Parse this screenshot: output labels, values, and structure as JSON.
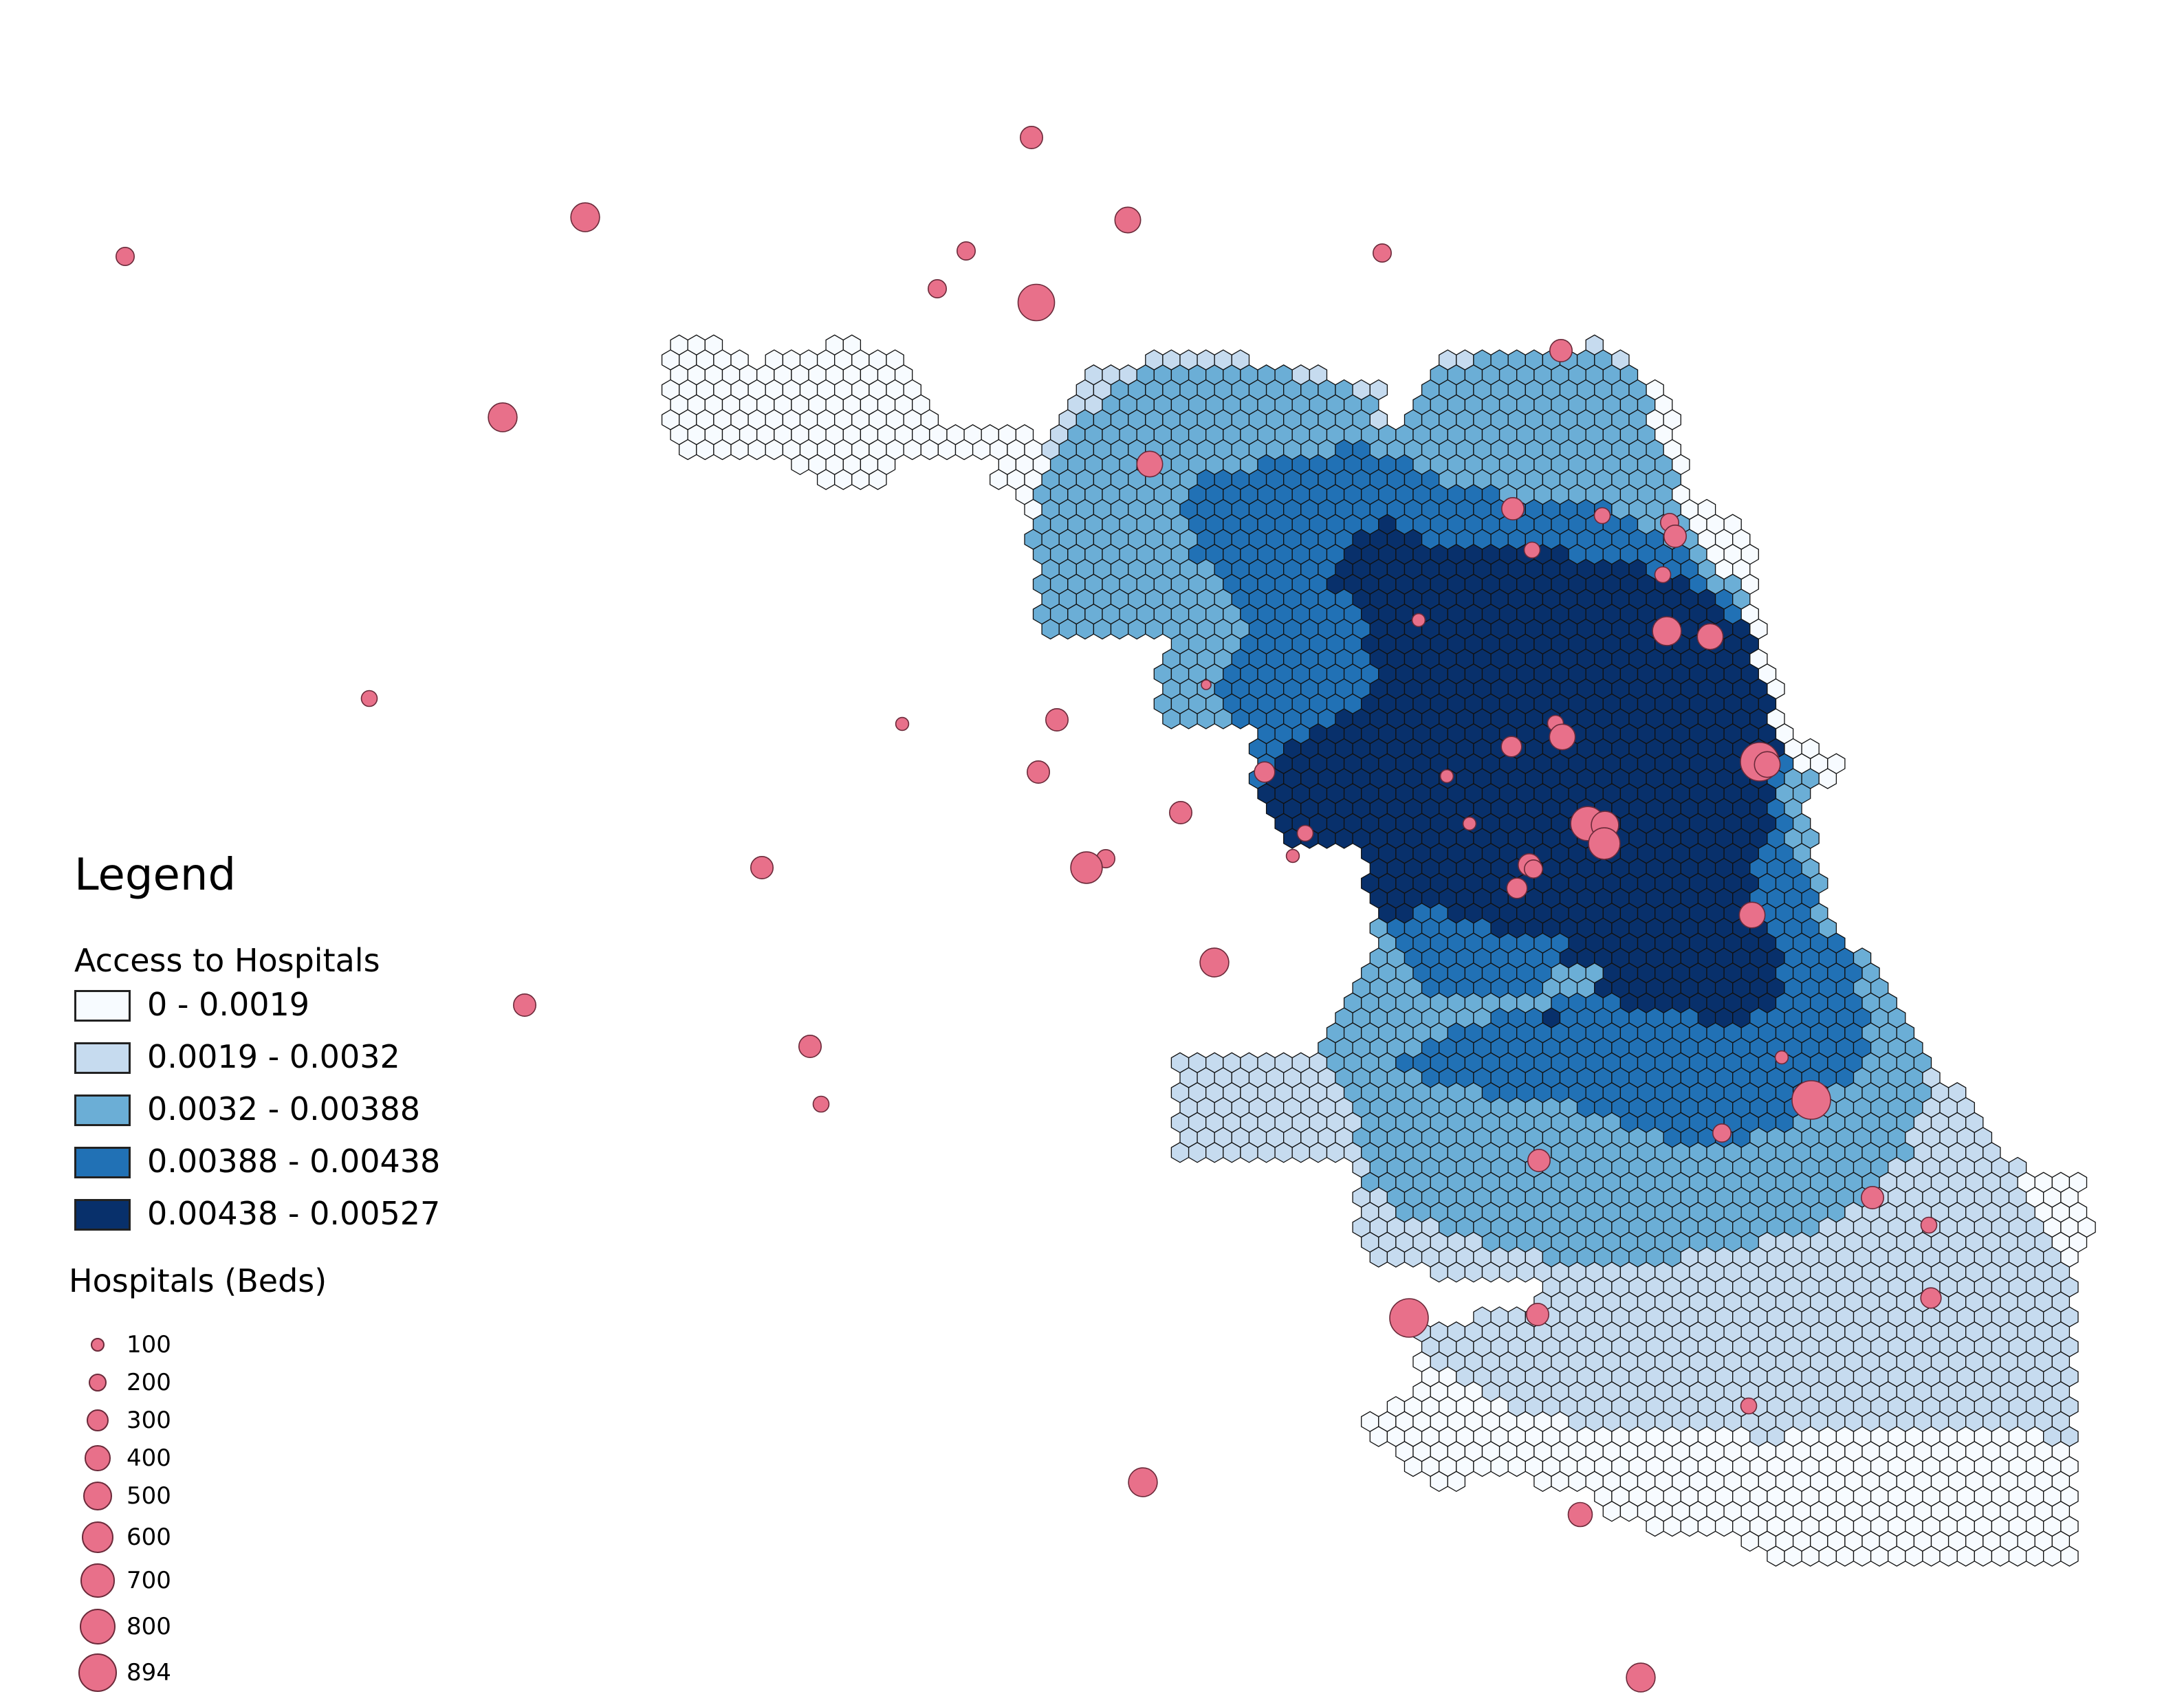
{
  "colors": {
    "class_fills": [
      "#f7fbff",
      "#c6dbef",
      "#6baed6",
      "#2171b5",
      "#08306b"
    ],
    "hex_stroke": "#111111",
    "hospital_fill": "#e8708a",
    "hospital_stroke": "#6b2a3a"
  },
  "legend": {
    "title": "Legend",
    "access_title": "Access to Hospitals",
    "classes": [
      {
        "label": "0 - 0.0019",
        "min": 0,
        "max": 0.0019
      },
      {
        "label": "0.0019 - 0.0032",
        "min": 0.0019,
        "max": 0.0032
      },
      {
        "label": "0.0032 - 0.00388",
        "min": 0.0032,
        "max": 0.00388
      },
      {
        "label": "0.00388 - 0.00438",
        "min": 0.00388,
        "max": 0.00438
      },
      {
        "label": "0.00438 - 0.00527",
        "min": 0.00438,
        "max": 0.00527
      }
    ],
    "beds_title": "Hospitals (Beds)",
    "bed_sizes": [
      {
        "label": "100",
        "beds": 100
      },
      {
        "label": "200",
        "beds": 200
      },
      {
        "label": "300",
        "beds": 300
      },
      {
        "label": "400",
        "beds": 400
      },
      {
        "label": "500",
        "beds": 500
      },
      {
        "label": "600",
        "beds": 600
      },
      {
        "label": "700",
        "beds": 700
      },
      {
        "label": "800",
        "beds": 800
      },
      {
        "label": "894",
        "beds": 894
      }
    ]
  }
}
